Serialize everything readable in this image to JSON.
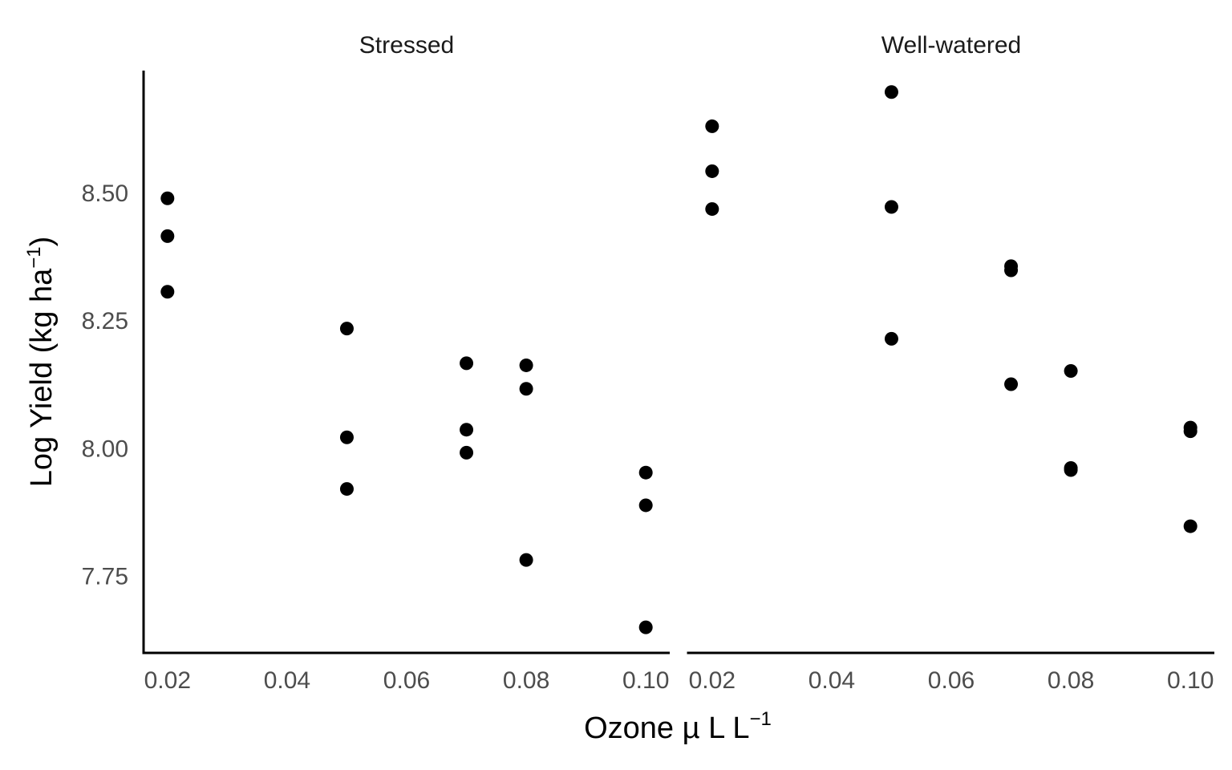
{
  "chart_data": {
    "type": "scatter",
    "xlabel": {
      "main": "Ozone µ L L",
      "sup": "−1"
    },
    "ylabel": {
      "pre": "Log Yield (kg ha",
      "sup": "−1",
      "post": ")"
    },
    "xlim": [
      0.016,
      0.104
    ],
    "ylim": [
      7.6,
      8.74
    ],
    "x_ticks": [
      0.02,
      0.04,
      0.06,
      0.08,
      0.1
    ],
    "x_tick_labels": [
      "0.02",
      "0.04",
      "0.06",
      "0.08",
      "0.10"
    ],
    "y_ticks": [
      7.75,
      8.0,
      8.25,
      8.5
    ],
    "y_tick_labels": [
      "7.75",
      "8.00",
      "8.25",
      "8.50"
    ],
    "grid": false,
    "legend": "none",
    "point_color": "#000000",
    "facets": [
      {
        "name": "Stressed",
        "x": [
          0.02,
          0.02,
          0.02,
          0.05,
          0.05,
          0.05,
          0.07,
          0.07,
          0.07,
          0.08,
          0.08,
          0.08,
          0.1,
          0.1,
          0.1
        ],
        "y": [
          8.49,
          8.416,
          8.307,
          8.235,
          8.022,
          7.921,
          8.167,
          8.037,
          7.992,
          8.163,
          8.117,
          7.782,
          7.953,
          7.889,
          7.65
        ]
      },
      {
        "name": "Well-watered",
        "x": [
          0.02,
          0.02,
          0.02,
          0.05,
          0.05,
          0.05,
          0.07,
          0.07,
          0.07,
          0.08,
          0.08,
          0.08,
          0.1,
          0.1,
          0.1
        ],
        "y": [
          8.631,
          8.543,
          8.469,
          8.698,
          8.473,
          8.215,
          8.357,
          8.349,
          8.126,
          8.152,
          7.962,
          7.958,
          8.041,
          8.034,
          7.848
        ]
      }
    ]
  }
}
